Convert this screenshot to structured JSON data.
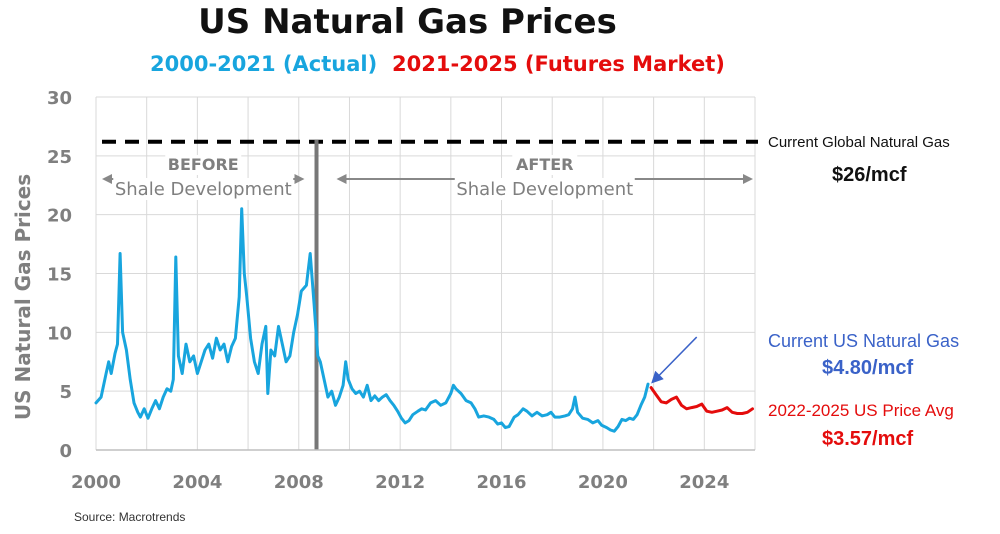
{
  "title": "US Natural Gas Prices",
  "subtitle_actual": "2000-2021 (Actual)",
  "subtitle_futures": "2021-2025 (Futures Market)",
  "colors": {
    "actual": "#18a5de",
    "futures": "#e40c0c",
    "arrow": "#3a62c8",
    "grid": "#d9d9d9",
    "axis_text": "#7f7f7f",
    "era_text": "#7f7f7f"
  },
  "annotations": {
    "global_label": "Current Global Natural Gas",
    "global_value": "$26/mcf",
    "us_label": "Current US Natural Gas",
    "us_value": "$4.80/mcf",
    "avg_label": "2022-2025 US Price Avg",
    "avg_value": "$3.57/mcf"
  },
  "source": "Source: Macrotrends",
  "chart_data": {
    "type": "line",
    "ylabel": "US Natural Gas Prices",
    "xlim": [
      2000,
      2026
    ],
    "ylim": [
      0,
      30
    ],
    "xticks": [
      2000,
      2004,
      2008,
      2012,
      2016,
      2020,
      2024
    ],
    "yticks": [
      0,
      5,
      10,
      15,
      20,
      25,
      30
    ],
    "grid": true,
    "reference_line": {
      "y": 26.2,
      "style": "dashed"
    },
    "divider_x": 2008.7,
    "eras": [
      {
        "title": "BEFORE",
        "subtitle": "Shale Development",
        "x_range": [
          2000,
          2008.7
        ]
      },
      {
        "title": "AFTER",
        "subtitle": "Shale Development",
        "x_range": [
          2008.7,
          2026
        ]
      }
    ],
    "series": [
      {
        "name": "2000-2021 (Actual)",
        "color": "#18a5de",
        "points": [
          [
            2000.0,
            4.0
          ],
          [
            2000.2,
            4.5
          ],
          [
            2000.4,
            6.5
          ],
          [
            2000.5,
            7.5
          ],
          [
            2000.6,
            6.5
          ],
          [
            2000.75,
            8.2
          ],
          [
            2000.85,
            9.0
          ],
          [
            2000.95,
            16.7
          ],
          [
            2001.05,
            10.0
          ],
          [
            2001.2,
            8.5
          ],
          [
            2001.35,
            6.0
          ],
          [
            2001.5,
            4.0
          ],
          [
            2001.65,
            3.2
          ],
          [
            2001.75,
            2.8
          ],
          [
            2001.9,
            3.5
          ],
          [
            2002.05,
            2.7
          ],
          [
            2002.2,
            3.5
          ],
          [
            2002.35,
            4.2
          ],
          [
            2002.5,
            3.5
          ],
          [
            2002.65,
            4.5
          ],
          [
            2002.8,
            5.2
          ],
          [
            2002.95,
            5.0
          ],
          [
            2003.05,
            6.0
          ],
          [
            2003.15,
            16.4
          ],
          [
            2003.25,
            8.0
          ],
          [
            2003.4,
            6.5
          ],
          [
            2003.55,
            9.0
          ],
          [
            2003.7,
            7.5
          ],
          [
            2003.85,
            8.0
          ],
          [
            2004.0,
            6.5
          ],
          [
            2004.15,
            7.5
          ],
          [
            2004.3,
            8.5
          ],
          [
            2004.45,
            9.0
          ],
          [
            2004.6,
            7.8
          ],
          [
            2004.75,
            9.5
          ],
          [
            2004.9,
            8.5
          ],
          [
            2005.05,
            9.0
          ],
          [
            2005.2,
            7.5
          ],
          [
            2005.35,
            8.8
          ],
          [
            2005.5,
            9.5
          ],
          [
            2005.65,
            13.0
          ],
          [
            2005.75,
            20.5
          ],
          [
            2005.85,
            15.0
          ],
          [
            2005.95,
            13.0
          ],
          [
            2006.1,
            9.5
          ],
          [
            2006.25,
            7.5
          ],
          [
            2006.4,
            6.5
          ],
          [
            2006.55,
            9.0
          ],
          [
            2006.7,
            10.5
          ],
          [
            2006.78,
            4.8
          ],
          [
            2006.9,
            8.5
          ],
          [
            2007.05,
            8.0
          ],
          [
            2007.2,
            10.5
          ],
          [
            2007.35,
            9.0
          ],
          [
            2007.5,
            7.5
          ],
          [
            2007.65,
            8.0
          ],
          [
            2007.8,
            10.0
          ],
          [
            2007.95,
            11.5
          ],
          [
            2008.1,
            13.5
          ],
          [
            2008.3,
            14.0
          ],
          [
            2008.45,
            16.7
          ],
          [
            2008.6,
            12.5
          ],
          [
            2008.75,
            8.0
          ],
          [
            2008.85,
            7.5
          ],
          [
            2009.0,
            6.0
          ],
          [
            2009.15,
            4.5
          ],
          [
            2009.3,
            5.0
          ],
          [
            2009.45,
            3.8
          ],
          [
            2009.6,
            4.5
          ],
          [
            2009.75,
            5.5
          ],
          [
            2009.85,
            7.5
          ],
          [
            2009.95,
            6.0
          ],
          [
            2010.1,
            5.2
          ],
          [
            2010.25,
            4.8
          ],
          [
            2010.4,
            5.0
          ],
          [
            2010.55,
            4.5
          ],
          [
            2010.7,
            5.5
          ],
          [
            2010.85,
            4.2
          ],
          [
            2011.0,
            4.6
          ],
          [
            2011.15,
            4.2
          ],
          [
            2011.3,
            4.5
          ],
          [
            2011.45,
            4.7
          ],
          [
            2011.6,
            4.2
          ],
          [
            2011.75,
            3.8
          ],
          [
            2011.9,
            3.3
          ],
          [
            2012.05,
            2.7
          ],
          [
            2012.2,
            2.3
          ],
          [
            2012.35,
            2.5
          ],
          [
            2012.5,
            3.0
          ],
          [
            2012.7,
            3.3
          ],
          [
            2012.85,
            3.5
          ],
          [
            2013.0,
            3.4
          ],
          [
            2013.2,
            4.0
          ],
          [
            2013.4,
            4.2
          ],
          [
            2013.6,
            3.8
          ],
          [
            2013.8,
            4.0
          ],
          [
            2014.0,
            4.8
          ],
          [
            2014.1,
            5.5
          ],
          [
            2014.2,
            5.2
          ],
          [
            2014.4,
            4.8
          ],
          [
            2014.6,
            4.2
          ],
          [
            2014.8,
            4.0
          ],
          [
            2014.95,
            3.5
          ],
          [
            2015.1,
            2.8
          ],
          [
            2015.3,
            2.9
          ],
          [
            2015.5,
            2.8
          ],
          [
            2015.7,
            2.6
          ],
          [
            2015.85,
            2.2
          ],
          [
            2016.0,
            2.3
          ],
          [
            2016.15,
            1.9
          ],
          [
            2016.3,
            2.0
          ],
          [
            2016.5,
            2.8
          ],
          [
            2016.65,
            3.0
          ],
          [
            2016.85,
            3.5
          ],
          [
            2017.0,
            3.3
          ],
          [
            2017.2,
            2.9
          ],
          [
            2017.4,
            3.2
          ],
          [
            2017.6,
            2.9
          ],
          [
            2017.8,
            3.0
          ],
          [
            2017.95,
            3.2
          ],
          [
            2018.1,
            2.8
          ],
          [
            2018.3,
            2.8
          ],
          [
            2018.5,
            2.9
          ],
          [
            2018.65,
            3.0
          ],
          [
            2018.8,
            3.5
          ],
          [
            2018.9,
            4.5
          ],
          [
            2019.0,
            3.2
          ],
          [
            2019.2,
            2.7
          ],
          [
            2019.4,
            2.6
          ],
          [
            2019.6,
            2.3
          ],
          [
            2019.8,
            2.5
          ],
          [
            2019.95,
            2.1
          ],
          [
            2020.15,
            1.9
          ],
          [
            2020.3,
            1.7
          ],
          [
            2020.45,
            1.6
          ],
          [
            2020.6,
            2.0
          ],
          [
            2020.75,
            2.6
          ],
          [
            2020.9,
            2.5
          ],
          [
            2021.05,
            2.7
          ],
          [
            2021.2,
            2.6
          ],
          [
            2021.35,
            3.0
          ],
          [
            2021.5,
            3.8
          ],
          [
            2021.65,
            4.5
          ],
          [
            2021.78,
            5.6
          ]
        ]
      },
      {
        "name": "2021-2025 (Futures Market)",
        "color": "#e40c0c",
        "points": [
          [
            2021.9,
            5.3
          ],
          [
            2022.1,
            4.7
          ],
          [
            2022.3,
            4.1
          ],
          [
            2022.5,
            4.0
          ],
          [
            2022.7,
            4.3
          ],
          [
            2022.9,
            4.5
          ],
          [
            2023.1,
            3.8
          ],
          [
            2023.3,
            3.5
          ],
          [
            2023.5,
            3.6
          ],
          [
            2023.7,
            3.7
          ],
          [
            2023.9,
            3.9
          ],
          [
            2024.1,
            3.3
          ],
          [
            2024.3,
            3.2
          ],
          [
            2024.5,
            3.3
          ],
          [
            2024.7,
            3.4
          ],
          [
            2024.9,
            3.6
          ],
          [
            2025.1,
            3.2
          ],
          [
            2025.3,
            3.1
          ],
          [
            2025.5,
            3.1
          ],
          [
            2025.7,
            3.2
          ],
          [
            2025.9,
            3.5
          ]
        ]
      }
    ],
    "callout_arrow": {
      "from": [
        2023.7,
        9.6
      ],
      "to": [
        2021.8,
        5.6
      ]
    }
  }
}
